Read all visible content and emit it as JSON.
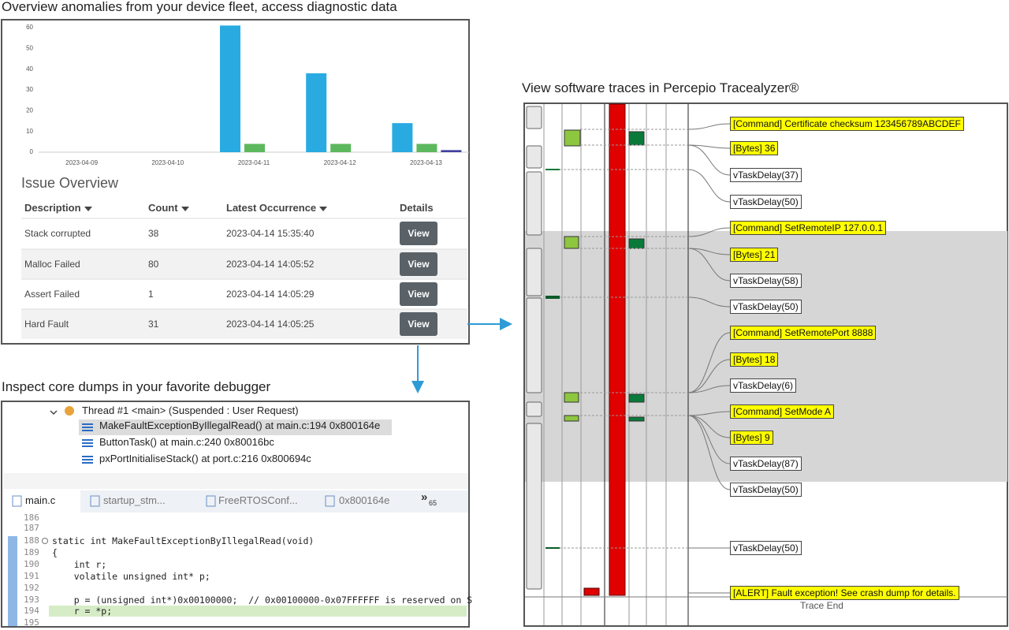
{
  "captions": {
    "fleet": "Overview anomalies from your device fleet, access diagnostic data",
    "debugger": "Inspect core dumps in your favorite debugger",
    "trace": "View software traces in Percepio Tracealyzer®"
  },
  "fleet_chart": {
    "type": "bar",
    "categories": [
      "2023-04-09",
      "2023-04-10",
      "2023-04-11",
      "2023-04-12",
      "2023-04-13"
    ],
    "series": [
      {
        "color": "#29abe2",
        "values": [
          0,
          0,
          61,
          38,
          14
        ]
      },
      {
        "color": "#5cb85c",
        "values": [
          0,
          0,
          4,
          4,
          4
        ]
      },
      {
        "color": "#3f3f9f",
        "values": [
          0,
          0,
          0,
          0,
          1
        ]
      }
    ],
    "ylim": [
      0,
      60
    ],
    "yticks": [
      0,
      10,
      20,
      30,
      40,
      50,
      60
    ],
    "grid": false
  },
  "issue_table": {
    "title": "Issue Overview",
    "columns": [
      "Description",
      "Count",
      "Latest Occurrence",
      "Details"
    ],
    "rows": [
      [
        "Stack corrupted",
        38,
        "2023-04-14 15:35:40",
        "View"
      ],
      [
        "Malloc Failed",
        80,
        "2023-04-14 14:05:52",
        "View"
      ],
      [
        "Assert Failed",
        1,
        "2023-04-14 14:05:29",
        "View"
      ],
      [
        "Hard Fault",
        31,
        "2023-04-14 14:05:25",
        "View"
      ]
    ]
  },
  "debugger": {
    "thread": "Thread #1 <main> (Suspended : User Request)",
    "frames": [
      "MakeFaultExceptionByIllegalRead() at main.c:194 0x800164e",
      "ButtonTask() at main.c:240 0x80016bc",
      "pxPortInitialiseStack() at port.c:216 0x800694c"
    ],
    "tabs": [
      "main.c",
      "startup_stm...",
      "FreeRTOSConf...",
      "0x800164e"
    ],
    "more_tabs": {
      "chevron": "»",
      "count": "65"
    },
    "code": [
      {
        "num": "186",
        "text": ""
      },
      {
        "num": "187",
        "text": ""
      },
      {
        "num": "188",
        "text": "static int MakeFaultExceptionByIllegalRead(void)"
      },
      {
        "num": "189",
        "text": "{"
      },
      {
        "num": "190",
        "text": "    int r;"
      },
      {
        "num": "191",
        "text": "    volatile unsigned int* p;"
      },
      {
        "num": "192",
        "text": ""
      },
      {
        "num": "193",
        "text": "    p = (unsigned int*)0x00100000;  // 0x00100000-0x07FFFFFF is reserved on S"
      },
      {
        "num": "194",
        "text": "    r = *p;"
      },
      {
        "num": "195",
        "text": ""
      }
    ]
  },
  "trace": {
    "labels": [
      {
        "text": "[Command] Certificate checksum 123456789ABCDEF",
        "highlight": true
      },
      {
        "text": "[Bytes] 36",
        "highlight": true
      },
      {
        "text": "vTaskDelay(37)",
        "highlight": false
      },
      {
        "text": "vTaskDelay(50)",
        "highlight": false
      },
      {
        "text": "[Command] SetRemoteIP 127.0.0.1",
        "highlight": true
      },
      {
        "text": "[Bytes] 21",
        "highlight": true
      },
      {
        "text": "vTaskDelay(58)",
        "highlight": false
      },
      {
        "text": "vTaskDelay(50)",
        "highlight": false
      },
      {
        "text": "[Command] SetRemotePort 8888",
        "highlight": true
      },
      {
        "text": "[Bytes] 18",
        "highlight": true
      },
      {
        "text": "vTaskDelay(6)",
        "highlight": false
      },
      {
        "text": "[Command] SetMode A",
        "highlight": true
      },
      {
        "text": "[Bytes] 9",
        "highlight": true
      },
      {
        "text": "vTaskDelay(87)",
        "highlight": false
      },
      {
        "text": "vTaskDelay(50)",
        "highlight": false
      },
      {
        "text": "vTaskDelay(50)",
        "highlight": false
      },
      {
        "text": "[ALERT] Fault exception! See crash dump for details.",
        "highlight": true
      }
    ],
    "end": "Trace End"
  }
}
